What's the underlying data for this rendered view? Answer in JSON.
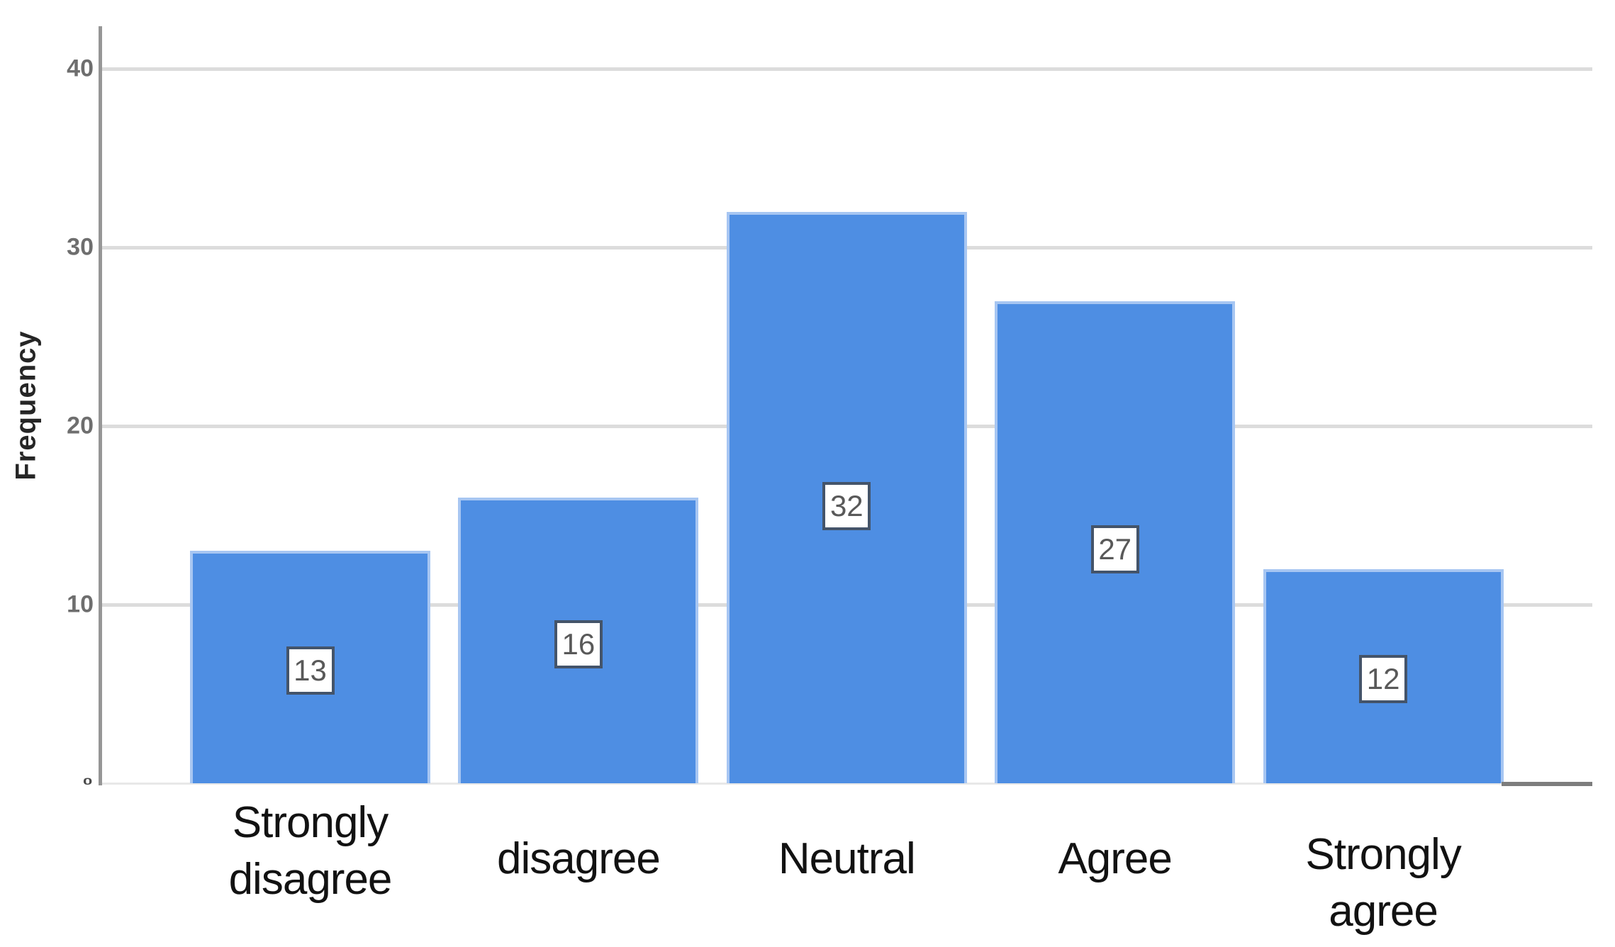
{
  "chart_data": {
    "type": "bar",
    "title": "",
    "xlabel": "",
    "ylabel": "Frequency",
    "categories": [
      "Strongly disagree",
      "disagree",
      "Neutral",
      "Agree",
      "Strongly agree"
    ],
    "category_lines": [
      [
        "Strongly",
        "disagree"
      ],
      [
        "disagree"
      ],
      [
        "Neutral"
      ],
      [
        "Agree"
      ],
      [
        "Strongly",
        "agree"
      ]
    ],
    "values": [
      13,
      16,
      32,
      27,
      12
    ],
    "data_labels": [
      13,
      16,
      32,
      27,
      12
    ],
    "y_ticks": [
      0,
      10,
      20,
      30,
      40
    ],
    "ylim": [
      0,
      42
    ],
    "grid": "horizontal",
    "legend": "none",
    "colors": {
      "background": "#ffffff",
      "bar_fill": "#4e8ee3",
      "bar_edge": "#a7c6f2",
      "gridline": "#dcdcdc",
      "axis_line": "#969696",
      "x_axis_dark_segment": "#7d7d7d",
      "tick_label": "#6e6e6e",
      "category_label": "#121212",
      "value_box_border": "#44546a",
      "value_box_fill": "#ffffff",
      "value_text": "#595959",
      "y_axis_title": "#262626"
    }
  }
}
